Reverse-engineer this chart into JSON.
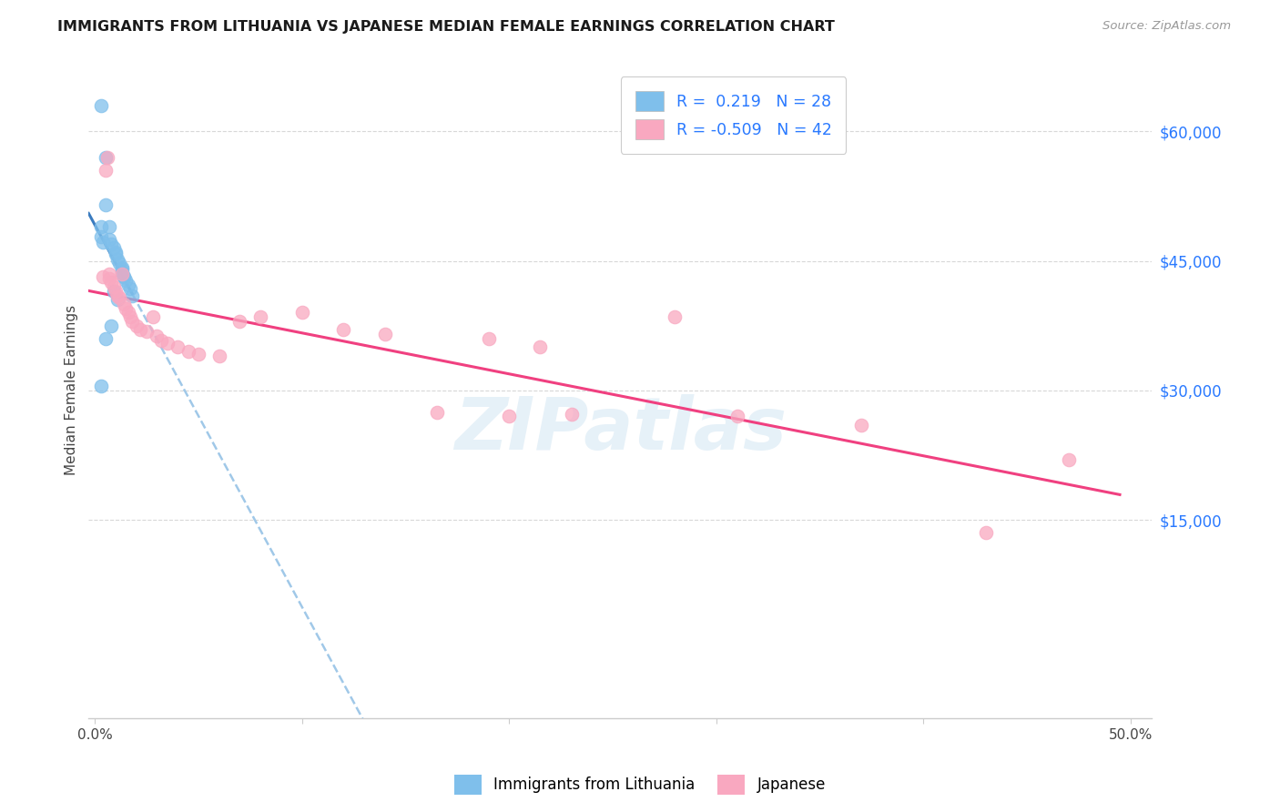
{
  "title": "IMMIGRANTS FROM LITHUANIA VS JAPANESE MEDIAN FEMALE EARNINGS CORRELATION CHART",
  "source": "Source: ZipAtlas.com",
  "ylabel": "Median Female Earnings",
  "yticks": [
    0,
    15000,
    30000,
    45000,
    60000
  ],
  "ytick_labels": [
    "",
    "$15,000",
    "$30,000",
    "$45,000",
    "$60,000"
  ],
  "ymax": 68000,
  "ymin": -8000,
  "xmin": -0.003,
  "xmax": 0.51,
  "watermark_text": "ZIPatlas",
  "blue_color": "#7fbfeb",
  "pink_color": "#f9a8c0",
  "trend_blue_solid": "#3a7bbf",
  "trend_pink_solid": "#f04080",
  "trend_blue_dash": "#a0c8e8",
  "lithuania_x": [
    0.003,
    0.005,
    0.005,
    0.007,
    0.007,
    0.008,
    0.009,
    0.01,
    0.01,
    0.011,
    0.012,
    0.013,
    0.013,
    0.014,
    0.015,
    0.016,
    0.017,
    0.018,
    0.011,
    0.013,
    0.014,
    0.009,
    0.008,
    0.005,
    0.003,
    0.003,
    0.004,
    0.003
  ],
  "lithuania_y": [
    63000,
    57000,
    51500,
    49000,
    47500,
    47000,
    46500,
    46000,
    45800,
    45200,
    44700,
    44200,
    43700,
    43200,
    42700,
    42200,
    41800,
    41000,
    40500,
    44000,
    43200,
    41500,
    37500,
    36000,
    49000,
    47800,
    47200,
    30500
  ],
  "japanese_x": [
    0.004,
    0.005,
    0.006,
    0.007,
    0.007,
    0.008,
    0.009,
    0.01,
    0.011,
    0.012,
    0.013,
    0.014,
    0.015,
    0.016,
    0.017,
    0.018,
    0.02,
    0.022,
    0.025,
    0.028,
    0.03,
    0.032,
    0.035,
    0.04,
    0.045,
    0.05,
    0.06,
    0.07,
    0.08,
    0.1,
    0.12,
    0.14,
    0.165,
    0.19,
    0.2,
    0.215,
    0.23,
    0.28,
    0.31,
    0.37,
    0.43,
    0.47
  ],
  "japanese_y": [
    43200,
    55500,
    57000,
    43500,
    43000,
    42500,
    42000,
    41500,
    41000,
    40700,
    43500,
    40000,
    39500,
    39000,
    38500,
    38000,
    37500,
    37000,
    36800,
    38500,
    36300,
    35800,
    35500,
    35000,
    34500,
    34200,
    34000,
    38000,
    38500,
    39000,
    37000,
    36500,
    27500,
    36000,
    27000,
    35000,
    27200,
    38500,
    27000,
    26000,
    13500,
    22000
  ],
  "xtick_positions": [
    0.0,
    0.1,
    0.2,
    0.3,
    0.4,
    0.5
  ],
  "grid_color": "#d8d8d8",
  "spine_color": "#cccccc"
}
